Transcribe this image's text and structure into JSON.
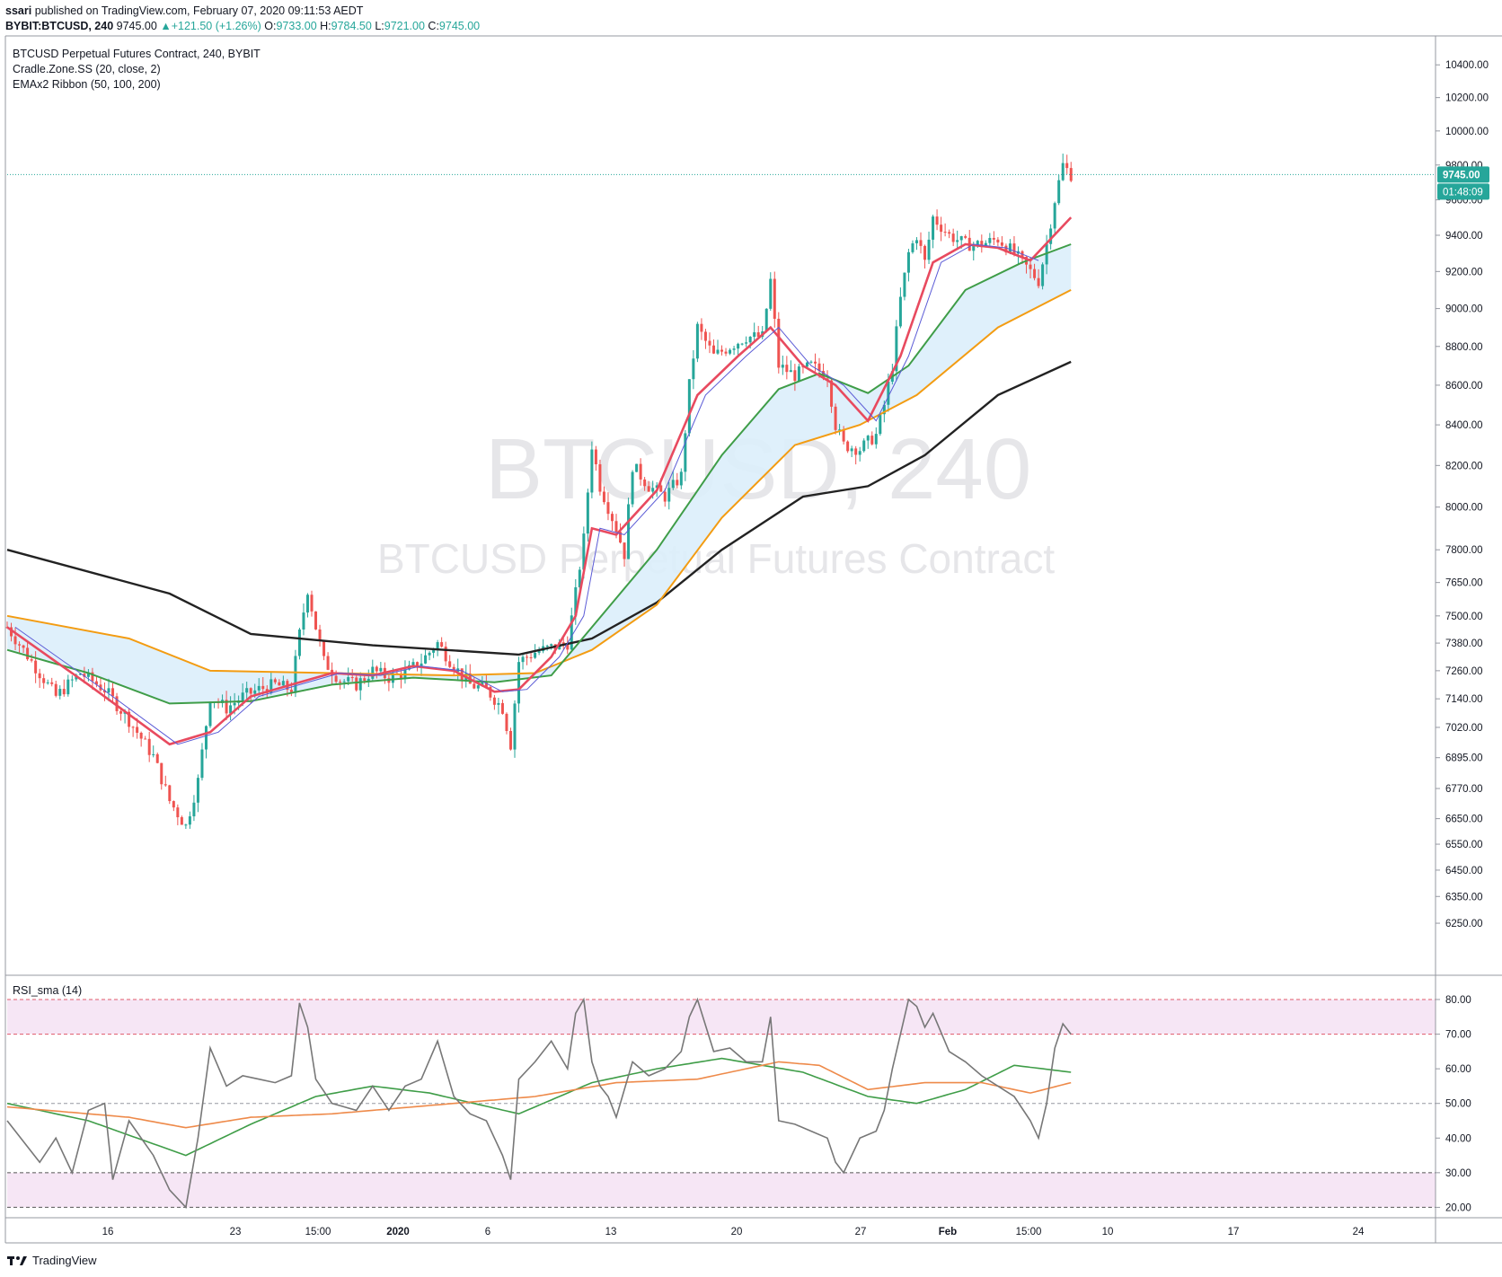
{
  "header": {
    "author": "ssari",
    "published": "published on TradingView.com, February 07, 2020 09:11:53 AEDT",
    "symbol": "BYBIT:BTCUSD, 240",
    "last": "9745.00",
    "change": "+121.50 (+1.26%)",
    "o_label": "O:",
    "o_val": "9733.00",
    "h_label": "H:",
    "h_val": "9784.50",
    "l_label": "L:",
    "l_val": "9721.00",
    "c_label": "C:",
    "c_val": "9745.00"
  },
  "legend": {
    "title": "BTCUSD Perpetual Futures Contract, 240, BYBIT",
    "ind1": "Cradle.Zone.SS (20, close, 2)",
    "ind2": "EMAx2 Ribbon (50, 100, 200)"
  },
  "watermark": {
    "line1": "BTCUSD, 240",
    "line2": "BTCUSD Perpetual Futures Contract"
  },
  "price_badge": {
    "price": "9745.00",
    "countdown": "01:48:09"
  },
  "rsi": {
    "title": "RSI_sma (14)"
  },
  "footer": {
    "brand": "TradingView"
  },
  "colors": {
    "up": "#26a69a",
    "down": "#ef5350",
    "ema_fast": "#e84a5f",
    "ema_mid": "#3f9d48",
    "ema_slow": "#f39c12",
    "ema_200": "#222222",
    "ribbon": "#dceefb",
    "rsi_line": "#777777",
    "rsi_ma": "#ee8a4a",
    "rsi_ma2": "#3f9d48",
    "rsi_band": "#f6e6f5"
  },
  "chart_data": [
    {
      "type": "candlestick",
      "title": "BTCUSD Perpetual Futures Contract, 240, BYBIT",
      "y_ticks": [
        "10400.00",
        "10200.00",
        "10000.00",
        "9800.00",
        "9600.00",
        "9400.00",
        "9200.00",
        "9000.00",
        "8800.00",
        "8600.00",
        "8400.00",
        "8200.00",
        "8000.00",
        "7800.00",
        "7650.00",
        "7500.00",
        "7380.00",
        "7260.00",
        "7140.00",
        "7020.00",
        "6895.00",
        "6770.00",
        "6650.00",
        "6550.00",
        "6450.00",
        "6350.00",
        "6250.00"
      ],
      "x_ticks": [
        "16",
        "23",
        "15:00",
        "2020",
        "6",
        "13",
        "20",
        "27",
        "Feb",
        "15:00",
        "10",
        "17",
        "24"
      ],
      "scale": "log",
      "ylim": [
        6150,
        10400
      ],
      "path": [
        [
          0,
          7450
        ],
        [
          6,
          7300
        ],
        [
          12,
          7150
        ],
        [
          18,
          7250
        ],
        [
          24,
          7180
        ],
        [
          30,
          7050
        ],
        [
          36,
          6900
        ],
        [
          40,
          6720
        ],
        [
          44,
          6620
        ],
        [
          47,
          6800
        ],
        [
          50,
          7150
        ],
        [
          54,
          7100
        ],
        [
          58,
          7150
        ],
        [
          62,
          7180
        ],
        [
          66,
          7200
        ],
        [
          70,
          7180
        ],
        [
          72,
          7420
        ],
        [
          74,
          7620
        ],
        [
          76,
          7450
        ],
        [
          78,
          7300
        ],
        [
          82,
          7220
        ],
        [
          86,
          7200
        ],
        [
          90,
          7260
        ],
        [
          94,
          7230
        ],
        [
          98,
          7250
        ],
        [
          102,
          7300
        ],
        [
          106,
          7380
        ],
        [
          110,
          7280
        ],
        [
          114,
          7200
        ],
        [
          118,
          7180
        ],
        [
          122,
          7100
        ],
        [
          124,
          6950
        ],
        [
          126,
          7300
        ],
        [
          130,
          7340
        ],
        [
          134,
          7360
        ],
        [
          138,
          7380
        ],
        [
          140,
          7600
        ],
        [
          142,
          7850
        ],
        [
          144,
          8300
        ],
        [
          146,
          8100
        ],
        [
          148,
          8000
        ],
        [
          150,
          7900
        ],
        [
          152,
          7780
        ],
        [
          154,
          8200
        ],
        [
          158,
          8100
        ],
        [
          162,
          8050
        ],
        [
          166,
          8150
        ],
        [
          168,
          8600
        ],
        [
          170,
          8900
        ],
        [
          174,
          8750
        ],
        [
          178,
          8800
        ],
        [
          182,
          8850
        ],
        [
          186,
          8850
        ],
        [
          188,
          9150
        ],
        [
          190,
          8700
        ],
        [
          194,
          8650
        ],
        [
          198,
          8700
        ],
        [
          202,
          8650
        ],
        [
          204,
          8400
        ],
        [
          206,
          8300
        ],
        [
          210,
          8280
        ],
        [
          214,
          8350
        ],
        [
          216,
          8500
        ],
        [
          218,
          8700
        ],
        [
          220,
          9050
        ],
        [
          222,
          9300
        ],
        [
          224,
          9400
        ],
        [
          226,
          9250
        ],
        [
          228,
          9500
        ],
        [
          232,
          9400
        ],
        [
          236,
          9350
        ],
        [
          240,
          9350
        ],
        [
          244,
          9380
        ],
        [
          248,
          9300
        ],
        [
          252,
          9200
        ],
        [
          254,
          9150
        ],
        [
          256,
          9350
        ],
        [
          258,
          9600
        ],
        [
          260,
          9800
        ],
        [
          262,
          9745
        ]
      ],
      "ema_fast": [
        [
          0,
          7450
        ],
        [
          20,
          7200
        ],
        [
          40,
          6950
        ],
        [
          50,
          7000
        ],
        [
          60,
          7150
        ],
        [
          70,
          7200
        ],
        [
          80,
          7250
        ],
        [
          90,
          7240
        ],
        [
          100,
          7280
        ],
        [
          110,
          7260
        ],
        [
          120,
          7170
        ],
        [
          126,
          7180
        ],
        [
          134,
          7320
        ],
        [
          140,
          7500
        ],
        [
          144,
          7900
        ],
        [
          150,
          7870
        ],
        [
          160,
          8080
        ],
        [
          170,
          8550
        ],
        [
          180,
          8750
        ],
        [
          188,
          8900
        ],
        [
          196,
          8700
        ],
        [
          204,
          8600
        ],
        [
          212,
          8420
        ],
        [
          220,
          8750
        ],
        [
          228,
          9250
        ],
        [
          236,
          9350
        ],
        [
          244,
          9330
        ],
        [
          252,
          9260
        ],
        [
          262,
          9500
        ]
      ],
      "ema_50": [
        [
          0,
          7350
        ],
        [
          20,
          7250
        ],
        [
          40,
          7120
        ],
        [
          60,
          7130
        ],
        [
          80,
          7200
        ],
        [
          100,
          7230
        ],
        [
          120,
          7210
        ],
        [
          134,
          7240
        ],
        [
          144,
          7450
        ],
        [
          160,
          7800
        ],
        [
          176,
          8250
        ],
        [
          190,
          8580
        ],
        [
          200,
          8660
        ],
        [
          212,
          8560
        ],
        [
          222,
          8700
        ],
        [
          236,
          9100
        ],
        [
          250,
          9250
        ],
        [
          262,
          9350
        ]
      ],
      "ema_100": [
        [
          0,
          7500
        ],
        [
          30,
          7400
        ],
        [
          50,
          7260
        ],
        [
          80,
          7250
        ],
        [
          110,
          7240
        ],
        [
          130,
          7250
        ],
        [
          144,
          7350
        ],
        [
          160,
          7550
        ],
        [
          176,
          7950
        ],
        [
          194,
          8300
        ],
        [
          210,
          8400
        ],
        [
          224,
          8550
        ],
        [
          244,
          8900
        ],
        [
          262,
          9100
        ]
      ],
      "ema_200": [
        [
          0,
          7800
        ],
        [
          40,
          7600
        ],
        [
          60,
          7420
        ],
        [
          90,
          7370
        ],
        [
          126,
          7330
        ],
        [
          144,
          7400
        ],
        [
          160,
          7560
        ],
        [
          176,
          7800
        ],
        [
          196,
          8050
        ],
        [
          212,
          8100
        ],
        [
          226,
          8250
        ],
        [
          244,
          8550
        ],
        [
          262,
          8720
        ]
      ]
    },
    {
      "type": "line",
      "title": "RSI_sma (14)",
      "y_ticks": [
        "80.00",
        "70.00",
        "60.00",
        "50.00",
        "40.00",
        "30.00",
        "20.00"
      ],
      "ylim": [
        17,
        87
      ],
      "series": [
        {
          "values": [
            [
              0,
              45
            ],
            [
              8,
              33
            ],
            [
              12,
              40
            ],
            [
              16,
              30
            ],
            [
              20,
              48
            ],
            [
              24,
              50
            ],
            [
              26,
              28
            ],
            [
              30,
              45
            ],
            [
              36,
              35
            ],
            [
              40,
              25
            ],
            [
              44,
              20
            ],
            [
              47,
              40
            ],
            [
              50,
              66
            ],
            [
              54,
              55
            ],
            [
              58,
              58
            ],
            [
              62,
              57
            ],
            [
              66,
              56
            ],
            [
              70,
              58
            ],
            [
              72,
              79
            ],
            [
              74,
              72
            ],
            [
              76,
              57
            ],
            [
              80,
              50
            ],
            [
              86,
              48
            ],
            [
              90,
              55
            ],
            [
              94,
              48
            ],
            [
              98,
              55
            ],
            [
              102,
              57
            ],
            [
              106,
              68
            ],
            [
              110,
              52
            ],
            [
              114,
              47
            ],
            [
              118,
              45
            ],
            [
              122,
              35
            ],
            [
              124,
              28
            ],
            [
              126,
              57
            ],
            [
              130,
              62
            ],
            [
              134,
              68
            ],
            [
              138,
              60
            ],
            [
              140,
              76
            ],
            [
              142,
              80
            ],
            [
              144,
              62
            ],
            [
              146,
              55
            ],
            [
              148,
              52
            ],
            [
              150,
              46
            ],
            [
              154,
              62
            ],
            [
              158,
              58
            ],
            [
              162,
              60
            ],
            [
              166,
              65
            ],
            [
              168,
              75
            ],
            [
              170,
              80
            ],
            [
              174,
              65
            ],
            [
              178,
              66
            ],
            [
              182,
              62
            ],
            [
              186,
              62
            ],
            [
              188,
              75
            ],
            [
              190,
              45
            ],
            [
              194,
              44
            ],
            [
              198,
              42
            ],
            [
              202,
              40
            ],
            [
              204,
              33
            ],
            [
              206,
              30
            ],
            [
              210,
              40
            ],
            [
              214,
              42
            ],
            [
              216,
              48
            ],
            [
              218,
              60
            ],
            [
              220,
              70
            ],
            [
              222,
              80
            ],
            [
              224,
              78
            ],
            [
              226,
              72
            ],
            [
              228,
              76
            ],
            [
              232,
              65
            ],
            [
              236,
              62
            ],
            [
              240,
              58
            ],
            [
              244,
              55
            ],
            [
              248,
              52
            ],
            [
              252,
              45
            ],
            [
              254,
              40
            ],
            [
              256,
              50
            ],
            [
              258,
              66
            ],
            [
              260,
              73
            ],
            [
              262,
              70
            ]
          ]
        },
        {
          "values": [
            [
              0,
              49
            ],
            [
              30,
              46
            ],
            [
              44,
              43
            ],
            [
              60,
              46
            ],
            [
              80,
              47
            ],
            [
              110,
              50
            ],
            [
              130,
              52
            ],
            [
              150,
              56
            ],
            [
              170,
              57
            ],
            [
              190,
              62
            ],
            [
              200,
              61
            ],
            [
              212,
              54
            ],
            [
              226,
              56
            ],
            [
              240,
              56
            ],
            [
              252,
              53
            ],
            [
              262,
              56
            ]
          ]
        },
        {
          "values": [
            [
              0,
              50
            ],
            [
              20,
              45
            ],
            [
              44,
              35
            ],
            [
              60,
              44
            ],
            [
              76,
              52
            ],
            [
              90,
              55
            ],
            [
              104,
              53
            ],
            [
              126,
              47
            ],
            [
              144,
              56
            ],
            [
              160,
              60
            ],
            [
              176,
              63
            ],
            [
              196,
              59
            ],
            [
              212,
              52
            ],
            [
              224,
              50
            ],
            [
              236,
              54
            ],
            [
              248,
              61
            ],
            [
              262,
              59
            ]
          ]
        }
      ]
    }
  ]
}
